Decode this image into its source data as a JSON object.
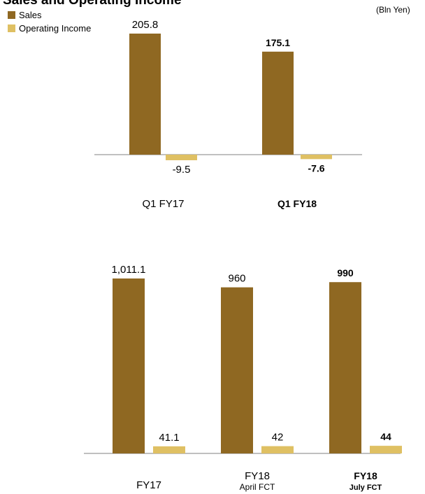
{
  "header": {
    "title": "Sales and Operating Income",
    "unit": "(Bln Yen)"
  },
  "legend": [
    {
      "label": "Sales",
      "color": "#8f6822"
    },
    {
      "label": "Operating Income",
      "color": "#dfc063"
    }
  ],
  "colors": {
    "sales": "#8f6822",
    "operating_income": "#dfc063",
    "axis": "#808080"
  },
  "chart_data": [
    {
      "type": "bar",
      "title": "",
      "categories": [
        "Q1 FY17",
        "Q1 FY18"
      ],
      "category_sublabels": [
        "",
        ""
      ],
      "emphasis": [
        false,
        true
      ],
      "series": [
        {
          "name": "Sales",
          "values": [
            205.8,
            175.1
          ],
          "labels": [
            "205.8",
            "175.1"
          ]
        },
        {
          "name": "Operating Income",
          "values": [
            -9.5,
            -7.6
          ],
          "labels": [
            "-9.5",
            "-7.6"
          ]
        }
      ],
      "grid": false
    },
    {
      "type": "bar",
      "title": "",
      "categories": [
        "FY17",
        "FY18",
        "FY18"
      ],
      "category_sublabels": [
        "",
        "April FCT",
        "July FCT"
      ],
      "emphasis": [
        false,
        false,
        true
      ],
      "series": [
        {
          "name": "Sales",
          "values": [
            1011.1,
            960,
            990
          ],
          "labels": [
            "1,011.1",
            "960",
            "990"
          ]
        },
        {
          "name": "Operating Income",
          "values": [
            41.1,
            42,
            44
          ],
          "labels": [
            "41.1",
            "42",
            "44"
          ]
        }
      ],
      "grid": false
    }
  ]
}
